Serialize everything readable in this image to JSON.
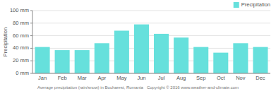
{
  "chart_data": {
    "type": "bar",
    "categories": [
      "Jan",
      "Feb",
      "Mar",
      "Apr",
      "May",
      "Jun",
      "Jul",
      "Aug",
      "Sep",
      "Oct",
      "Nov",
      "Dec"
    ],
    "series": [
      {
        "name": "Precipitation",
        "color": "#66E0DC",
        "values": [
          42,
          37,
          37,
          48,
          68,
          78,
          63,
          57,
          42,
          33,
          48,
          42
        ]
      }
    ],
    "ylabel": "Precipitation",
    "xlabel": "Average precipitation (rain/snow) in Bucharest, Romania   Copyright © 2016 www.weather-and-climate.com",
    "ylim": [
      0,
      100
    ],
    "yticks": [
      {
        "value": 0,
        "label": "0 mm"
      },
      {
        "value": 20,
        "label": "20 mm"
      },
      {
        "value": 40,
        "label": "40 mm"
      },
      {
        "value": 60,
        "label": "60 mm"
      },
      {
        "value": 80,
        "label": "80 mm"
      },
      {
        "value": 100,
        "label": "100 mm"
      }
    ],
    "grid": true,
    "legend": "upper right"
  }
}
